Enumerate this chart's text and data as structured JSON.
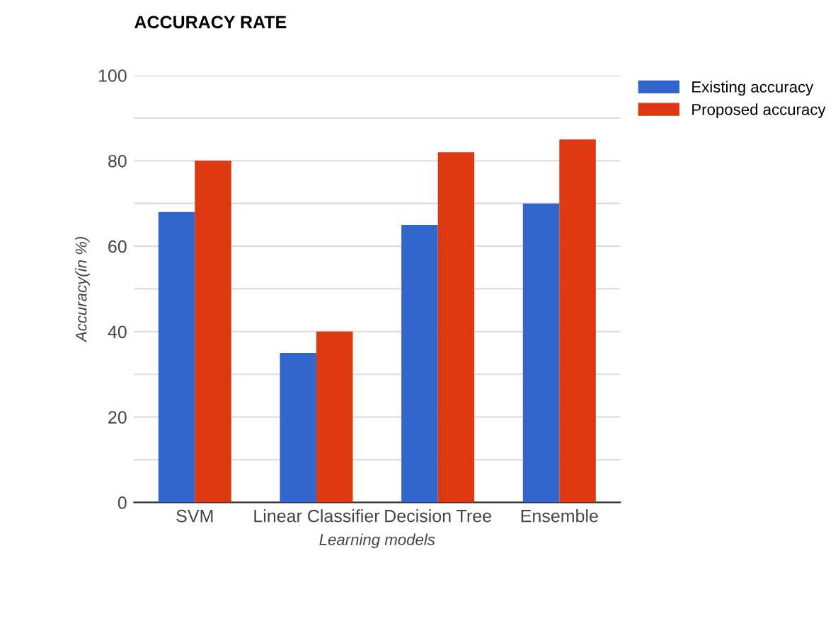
{
  "chart_data": {
    "type": "bar",
    "title": "ACCURACY RATE",
    "xlabel": "Learning models",
    "ylabel": "Accuracy(in %)",
    "categories": [
      "SVM",
      "Linear Classifier",
      "Decision Tree",
      "Ensemble"
    ],
    "series": [
      {
        "name": "Existing accuracy",
        "color": "#3366cc",
        "values": [
          68,
          35,
          65,
          70
        ]
      },
      {
        "name": "Proposed accuracy",
        "color": "#dc3912",
        "values": [
          80,
          40,
          82,
          85
        ]
      }
    ],
    "ylim": [
      0,
      100
    ],
    "yticks": [
      0,
      {
        "value": 10,
        "label": null
      },
      20,
      {
        "value": 30,
        "label": null
      },
      40,
      {
        "value": 50,
        "label": null
      },
      60,
      {
        "value": 70,
        "label": null
      },
      80,
      {
        "value": 90,
        "label": null
      },
      100
    ],
    "grid": "y",
    "legend": "top right"
  }
}
